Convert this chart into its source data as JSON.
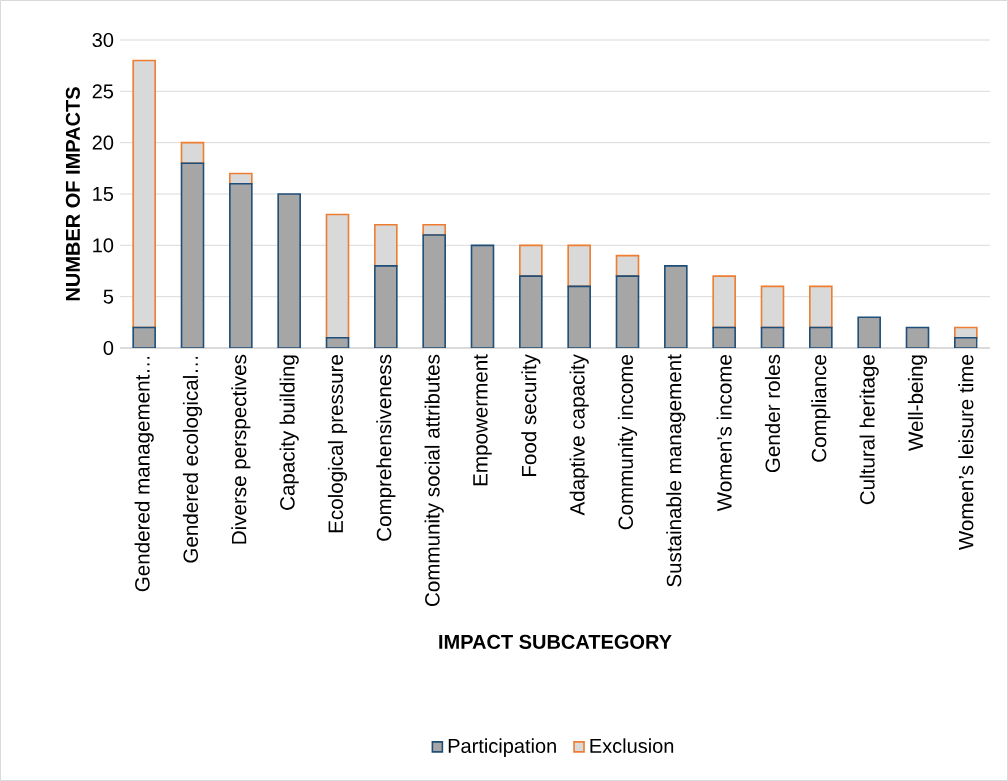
{
  "chart_data": {
    "type": "bar",
    "stacked": true,
    "xlabel": "IMPACT SUBCATEGORY",
    "ylabel": "NUMBER OF IMPACTS",
    "categories": [
      "Gendered management…",
      "Gendered ecological…",
      "Diverse perspectives",
      "Capacity building",
      "Ecological pressure",
      "Comprehensiveness",
      "Community social attributes",
      "Empowerment",
      "Food security",
      "Adaptive capacity",
      "Community income",
      "Sustainable management",
      "Women’s income",
      "Gender roles",
      "Compliance",
      "Cultural heritage",
      "Well-being",
      "Women’s leisure time"
    ],
    "series": [
      {
        "name": "Participation",
        "color": "#a6a6a6",
        "values": [
          2,
          18,
          16,
          15,
          1,
          8,
          11,
          10,
          7,
          6,
          7,
          8,
          2,
          2,
          2,
          3,
          2,
          1
        ]
      },
      {
        "name": "Exclusion",
        "color": "#d9d9d9",
        "values": [
          26,
          2,
          1,
          0,
          12,
          4,
          1,
          0,
          3,
          4,
          2,
          0,
          5,
          4,
          4,
          0,
          0,
          1
        ]
      }
    ],
    "ylim": [
      0,
      30
    ],
    "yticks": [
      0,
      5,
      10,
      15,
      20,
      25,
      30
    ],
    "grid": "y",
    "legend": "bottom"
  }
}
